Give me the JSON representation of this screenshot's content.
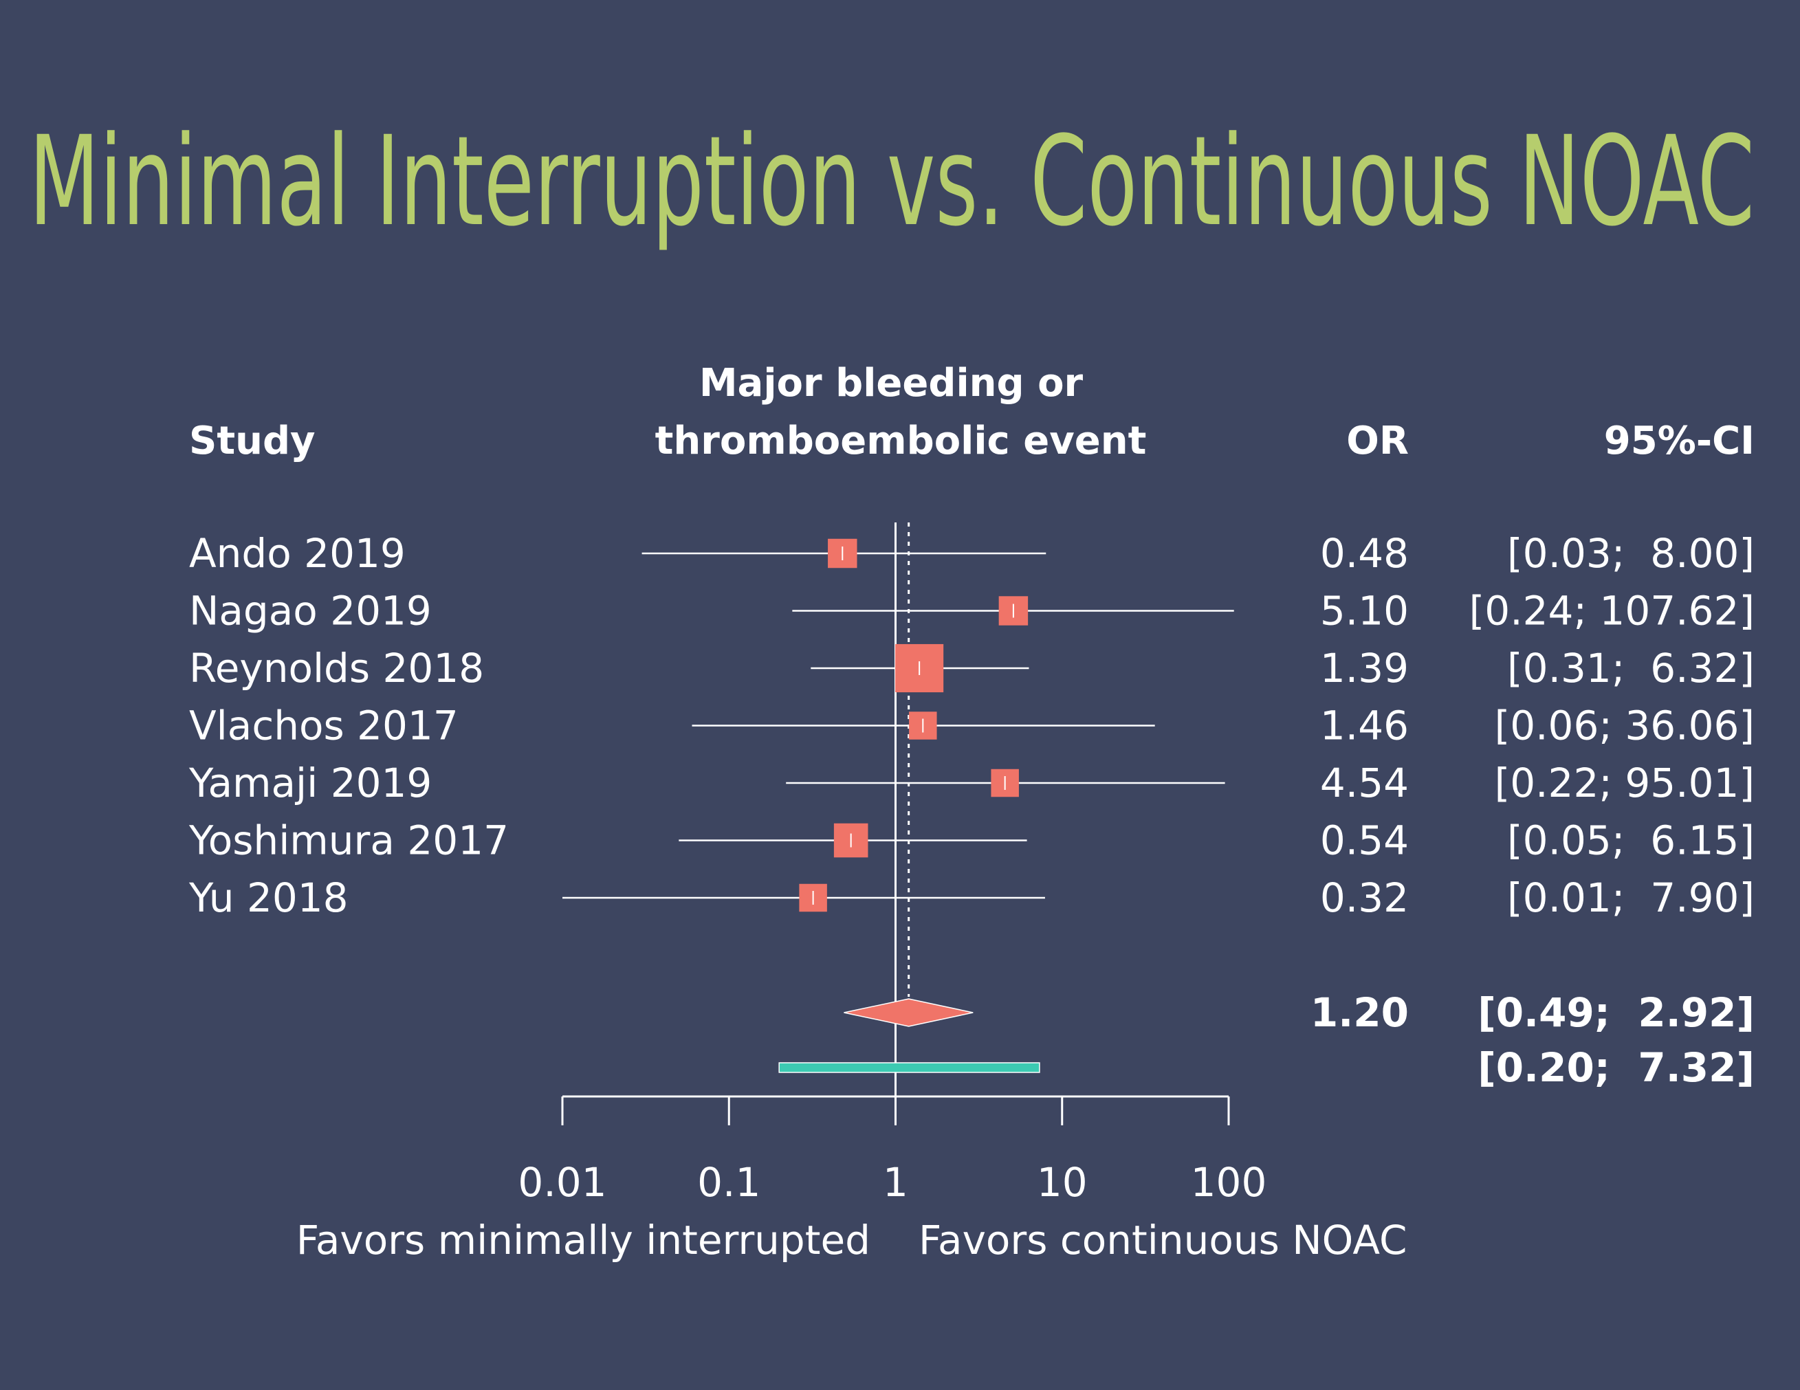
{
  "chart_data": {
    "type": "forest",
    "title": "Minimal Interruption vs. Continuous NOAC",
    "headers": {
      "study": "Study",
      "effect": [
        "Major bleeding or",
        "thromboembolic event"
      ],
      "or": "OR",
      "ci": "95%-CI"
    },
    "studies": [
      "Ando 2019",
      "Nagao 2019",
      "Reynolds 2018",
      "Vlachos 2017",
      "Yamaji 2019",
      "Yoshimura 2017",
      "Yu 2018"
    ],
    "values": [
      0.48,
      5.1,
      1.39,
      1.46,
      4.54,
      0.54,
      0.32
    ],
    "value_labels": [
      "0.48",
      "5.10",
      "1.39",
      "1.46",
      "4.54",
      "0.54",
      "0.32"
    ],
    "ci_lower": [
      0.03,
      0.24,
      0.31,
      0.06,
      0.22,
      0.05,
      0.01
    ],
    "ci_upper": [
      8.0,
      107.62,
      6.32,
      36.06,
      95.01,
      6.15,
      7.9
    ],
    "ci_labels": [
      "[0.03;  8.00]",
      "[0.24; 107.62]",
      "[0.31;  6.32]",
      "[0.06; 36.06]",
      "[0.22; 95.01]",
      "[0.05;  6.15]",
      "[0.01;  7.90]"
    ],
    "weights": [
      11,
      11,
      30,
      10,
      10,
      15,
      10
    ],
    "pooled": {
      "value": 1.2,
      "value_label": "1.20",
      "ci_lower": 0.49,
      "ci_upper": 2.92,
      "ci_label": "[0.49;  2.92]"
    },
    "prediction": {
      "lower": 0.2,
      "upper": 7.32,
      "label": "[0.20;  7.32]"
    },
    "xlim": [
      0.01,
      100
    ],
    "xticks": [
      0.01,
      0.1,
      1,
      10,
      100
    ],
    "log_scale": true,
    "x_labels": [
      "Favors minimally interrupted",
      "Favors continuous NOAC"
    ],
    "color": "#f07468",
    "prediction_color": "#3ccab2"
  }
}
